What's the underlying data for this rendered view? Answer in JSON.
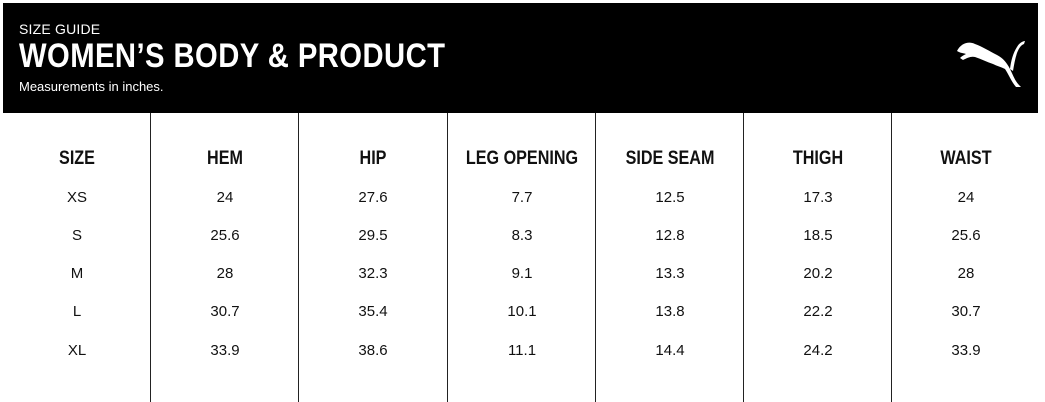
{
  "header": {
    "kicker": "SIZE GUIDE",
    "title": "WOMEN’S BODY & PRODUCT",
    "subtitle": "Measurements in inches.",
    "logo": "puma-cat-logo",
    "background_color": "#000000"
  },
  "table": {
    "columns": [
      "SIZE",
      "HEM",
      "HIP",
      "LEG OPENING",
      "SIDE SEAM",
      "THIGH",
      "WAIST"
    ],
    "rows": [
      [
        "XS",
        "24",
        "27.6",
        "7.7",
        "12.5",
        "17.3",
        "24"
      ],
      [
        "S",
        "25.6",
        "29.5",
        "8.3",
        "12.8",
        "18.5",
        "25.6"
      ],
      [
        "M",
        "28",
        "32.3",
        "9.1",
        "13.3",
        "20.2",
        "28"
      ],
      [
        "L",
        "30.7",
        "35.4",
        "10.1",
        "13.8",
        "22.2",
        "30.7"
      ],
      [
        "XL",
        "33.9",
        "38.6",
        "11.1",
        "14.4",
        "24.2",
        "33.9"
      ]
    ]
  }
}
